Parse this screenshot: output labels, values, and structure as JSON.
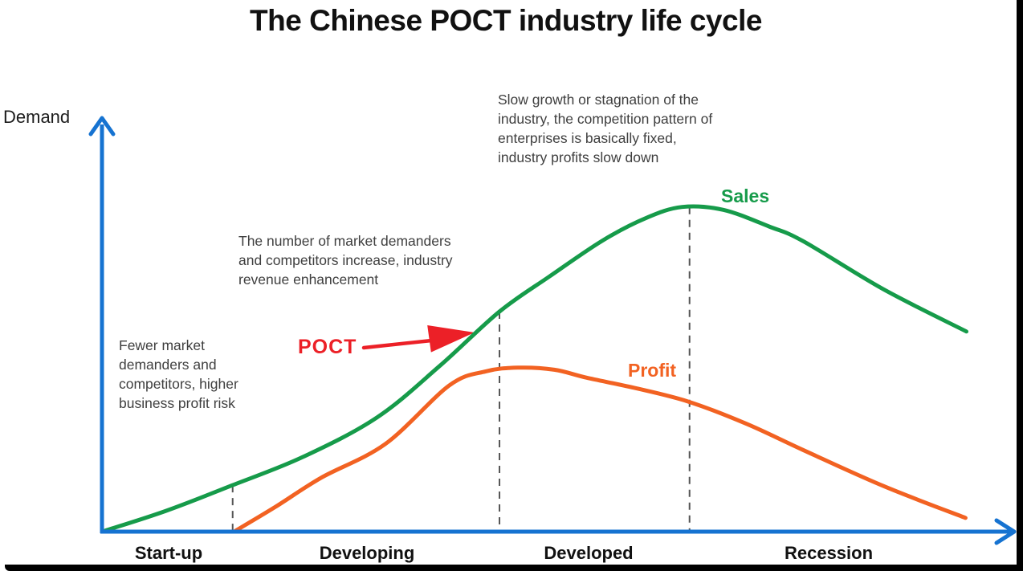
{
  "title": "The Chinese POCT industry life cycle",
  "axis": {
    "y_label": "Demand"
  },
  "series_labels": {
    "sales": "Sales",
    "profit": "Profit"
  },
  "poct": {
    "label": "POCT"
  },
  "annotations": {
    "startup": "Fewer market demanders and competitors, higher business profit risk",
    "developing": "The number of market demanders and competitors increase, industry revenue enhancement",
    "developed": "Slow growth or stagnation of the industry, the competition pattern of enterprises is basically fixed, industry profits slow down"
  },
  "colors": {
    "sales": "#169b4a",
    "profit": "#f26222",
    "axis": "#1673d1",
    "poct_red": "#ec2027",
    "dashed": "#555555",
    "text": "#3f3f3f",
    "title_text": "#111111"
  },
  "chart_data": {
    "type": "line",
    "title": "The Chinese POCT industry life cycle",
    "xlabel": "",
    "ylabel": "Demand",
    "categories": [
      "Start-up",
      "Developing",
      "Developed",
      "Recession"
    ],
    "x_range": [
      0,
      100
    ],
    "y_range": [
      0,
      100
    ],
    "grid": false,
    "legend_position": "inline-labels",
    "series": [
      {
        "name": "Sales",
        "color": "#169b4a",
        "points": [
          [
            0.3,
            0.2
          ],
          [
            7,
            5
          ],
          [
            14.3,
            11.2
          ],
          [
            22,
            18
          ],
          [
            30.1,
            27.5
          ],
          [
            37,
            40
          ],
          [
            43.5,
            53
          ],
          [
            49,
            61.5
          ],
          [
            54.7,
            70
          ],
          [
            59.5,
            75.5
          ],
          [
            63.5,
            78.2
          ],
          [
            68,
            77.5
          ],
          [
            73,
            73.5
          ],
          [
            76.7,
            70
          ],
          [
            85.5,
            58.4
          ],
          [
            94.6,
            48.2
          ]
        ]
      },
      {
        "name": "Profit",
        "color": "#f26222",
        "points": [
          [
            14.6,
            0.2
          ],
          [
            19,
            6
          ],
          [
            24,
            13
          ],
          [
            31,
            21.1
          ],
          [
            38,
            35.2
          ],
          [
            42,
            38.6
          ],
          [
            45.5,
            39.5
          ],
          [
            49.5,
            39
          ],
          [
            53,
            37.1
          ],
          [
            58.5,
            34.5
          ],
          [
            64.2,
            31.3
          ],
          [
            70.5,
            26
          ],
          [
            76.7,
            19.7
          ],
          [
            85.5,
            11
          ],
          [
            94.5,
            3.3
          ]
        ]
      }
    ],
    "dashed_markers": [
      {
        "x": 14.3,
        "y_top": 11.2
      },
      {
        "x": 43.5,
        "y_top": 53.0
      },
      {
        "x": 64.3,
        "y_top": 78.2
      }
    ]
  }
}
